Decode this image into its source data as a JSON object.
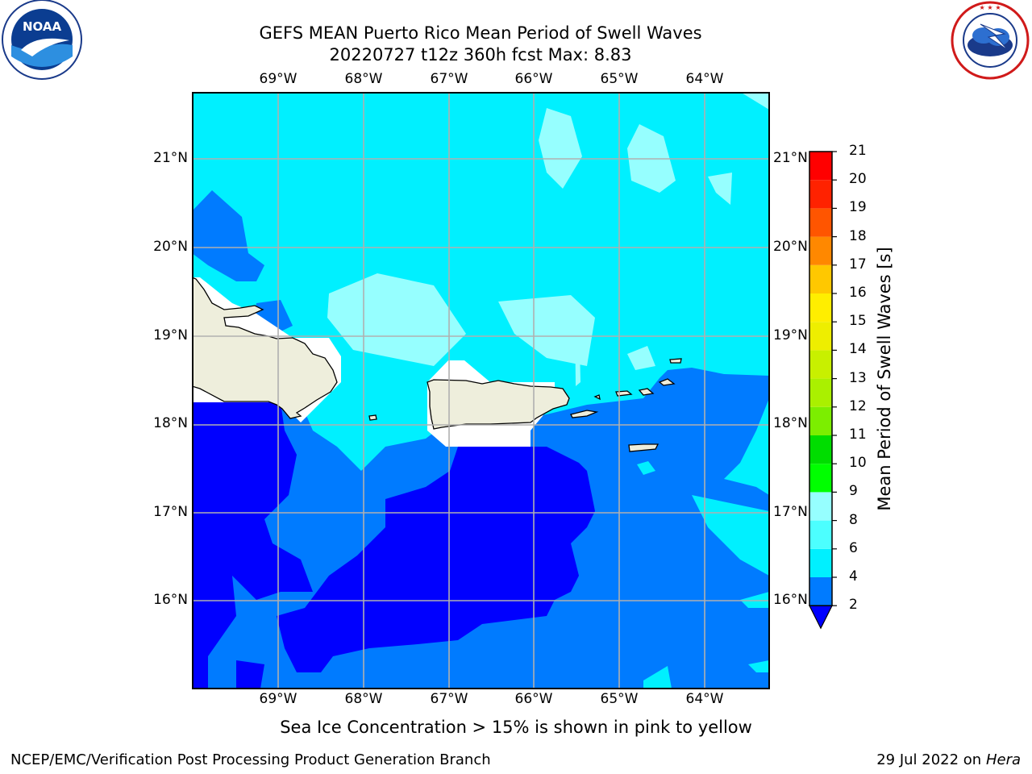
{
  "header": {
    "title_line1": "GEFS MEAN Puerto Rico Mean Period of Swell Waves",
    "title_line2": "20220727 t12z 360h fcst   Max: 8.83"
  },
  "logos": {
    "left": {
      "text": "NOAA",
      "ring_text": "NATIONAL OCEANIC AND ATMOSPHERIC ADMINISTRATION · U.S. DEPARTMENT OF COMMERCE"
    },
    "right": {
      "ring_text": "NATIONAL WEATHER SERVICE"
    }
  },
  "map": {
    "lon_ticks": [
      "69°W",
      "68°W",
      "67°W",
      "66°W",
      "65°W",
      "64°W"
    ],
    "lat_ticks": [
      "21°N",
      "20°N",
      "19°N",
      "18°N",
      "17°N",
      "16°N"
    ],
    "colors": {
      "land": "#eeeedc",
      "masked": "#ffffff",
      "grid": "#b0b0b0",
      "band_2_4": "#0000ff",
      "band_4_6": "#007bff",
      "band_6_8": "#00f0ff",
      "band_8_9": "#96ffff"
    }
  },
  "colorbar": {
    "label": "Mean Period of Swell Waves [s]",
    "ticks": [
      "2",
      "4",
      "6",
      "8",
      "9",
      "10",
      "11",
      "12",
      "13",
      "14",
      "15",
      "16",
      "17",
      "18",
      "19",
      "20",
      "21"
    ],
    "colors": [
      "#007bff",
      "#00f0ff",
      "#4cffff",
      "#96ffff",
      "#4cff80",
      "#00ff00",
      "#00dd00",
      "#7cee00",
      "#aaf000",
      "#c8f000",
      "#eeee00",
      "#ffee00",
      "#ffc800",
      "#ffaa00",
      "#ff8800",
      "#ff5500",
      "#ff2200",
      "#ff0000"
    ],
    "extend_color": "#0000ff"
  },
  "note": "Sea Ice Concentration > 15% is shown in pink to yellow",
  "footer": {
    "left": "NCEP/EMC/Verification Post Processing Product Generation Branch",
    "date": "29 Jul 2022 on ",
    "machine": "Hera"
  }
}
